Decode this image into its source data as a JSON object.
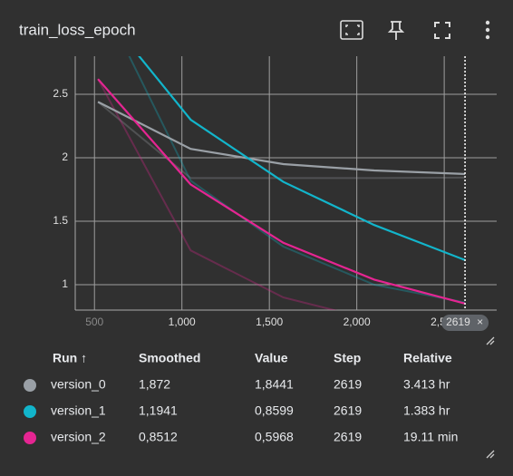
{
  "chart_data": {
    "type": "line",
    "title": "train_loss_epoch",
    "x": [
      520,
      1050,
      1580,
      2100,
      2619
    ],
    "xlim": [
      390,
      2800
    ],
    "xticks": [
      500,
      {
        "value": 1000,
        "label": "1,000"
      },
      {
        "value": 1500,
        "label": "1,500"
      },
      {
        "value": 2000,
        "label": "2,000"
      },
      {
        "value": 2500,
        "label": "2,500"
      }
    ],
    "ylim": [
      0.8,
      2.8
    ],
    "yticks": [
      2.5,
      2,
      1.5,
      1
    ],
    "grid": true,
    "hover_step": 2619,
    "series": [
      {
        "name": "version_0",
        "color": "#9aa0a6",
        "values": [
          2.44,
          2.07,
          1.95,
          1.9,
          1.872
        ],
        "raw": [
          2.44,
          1.84,
          1.84,
          1.84,
          1.8441
        ]
      },
      {
        "name": "version_1",
        "color": "#12b5cb",
        "values": [
          3.2,
          2.3,
          1.81,
          1.47,
          1.1941
        ],
        "raw": [
          3.3,
          1.82,
          1.3,
          1.0,
          0.8599
        ]
      },
      {
        "name": "version_2",
        "color": "#e52592",
        "values": [
          2.62,
          1.79,
          1.33,
          1.04,
          0.8512
        ],
        "raw": [
          2.62,
          1.27,
          0.9,
          0.72,
          0.5968
        ]
      }
    ]
  },
  "table": {
    "headers": [
      "Run ↑",
      "Smoothed",
      "Value",
      "Step",
      "Relative"
    ],
    "rows": [
      [
        "version_0",
        "1,872",
        "1,8441",
        "2619",
        "3.413 hr"
      ],
      [
        "version_1",
        "1,1941",
        "0,8599",
        "2619",
        "1.383 hr"
      ],
      [
        "version_2",
        "0,8512",
        "0,5968",
        "2619",
        "19.11 min"
      ]
    ]
  }
}
